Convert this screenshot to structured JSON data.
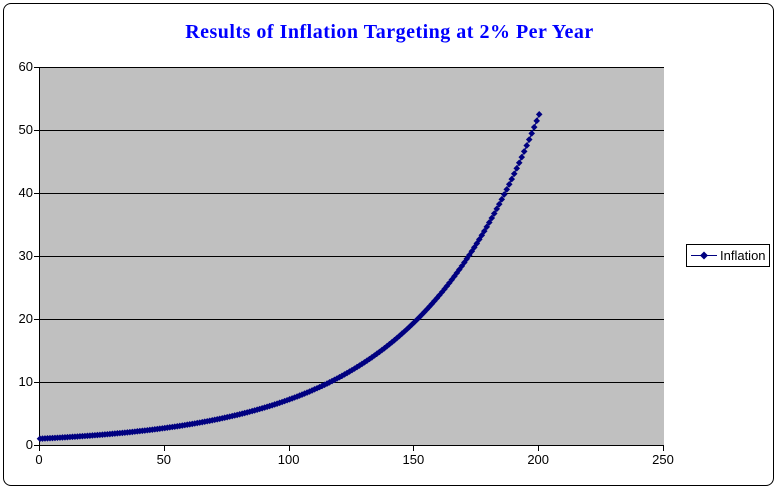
{
  "window": {
    "background": "#FFFFFF",
    "frame_border_color": "#000000"
  },
  "chart": {
    "title_color": "#0000FF",
    "plot_background": "#C0C0C0",
    "gridline_color": "#000000",
    "axis_color": "#000000",
    "tick_label_color": "#000000",
    "legend": {
      "label": "Inflation",
      "marker": "line-with-diamond",
      "border_color": "#000000",
      "background": "#FFFFFF"
    }
  },
  "chart_data": {
    "type": "line",
    "title": "Results of Inflation Targeting at 2% Per Year",
    "xlabel": "",
    "ylabel": "",
    "xlim": [
      0,
      250
    ],
    "ylim": [
      0,
      60
    ],
    "x_ticks": [
      0,
      50,
      100,
      150,
      200,
      250
    ],
    "y_ticks": [
      0,
      10,
      20,
      30,
      40,
      50,
      60
    ],
    "grid": "horizontal-major",
    "legend_position": "right-outside",
    "series": [
      {
        "name": "Inflation",
        "color": "#000080",
        "marker": "diamond",
        "line": true,
        "x_start": 0,
        "x_end": 200,
        "x_step": 1,
        "initial_value": 1.0,
        "growth_rate": 1.02,
        "formula": "value(x) = 1.00 * 1.02^x (price level index compounding at 2% per year)",
        "sample_points": [
          [
            0,
            1.0
          ],
          [
            10,
            1.22
          ],
          [
            20,
            1.49
          ],
          [
            30,
            1.81
          ],
          [
            40,
            2.21
          ],
          [
            50,
            2.69
          ],
          [
            60,
            3.28
          ],
          [
            70,
            4.0
          ],
          [
            80,
            4.88
          ],
          [
            90,
            5.94
          ],
          [
            100,
            7.24
          ],
          [
            110,
            8.83
          ],
          [
            120,
            10.77
          ],
          [
            130,
            13.12
          ],
          [
            140,
            16.0
          ],
          [
            150,
            19.5
          ],
          [
            160,
            23.77
          ],
          [
            170,
            28.98
          ],
          [
            180,
            35.32
          ],
          [
            190,
            43.06
          ],
          [
            200,
            52.48
          ]
        ]
      }
    ]
  }
}
